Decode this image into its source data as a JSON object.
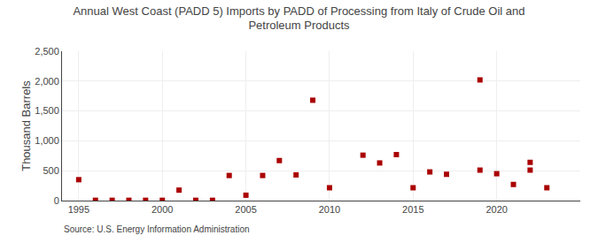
{
  "chart_data": {
    "type": "scatter",
    "title": "Annual West Coast (PADD 5) Imports by PADD of Processing from Italy of Crude Oil and\nPetroleum Products",
    "ylabel": "Thousand Barrels",
    "annotations": [
      "Source: U.S. Energy Information Administration"
    ],
    "x": [
      1995,
      1996,
      1997,
      1998,
      1999,
      2000,
      2001,
      2002,
      2003,
      2004,
      2005,
      2006,
      2007,
      2008,
      2009,
      2010,
      2012,
      2013,
      2014,
      2015,
      2016,
      2017,
      2019,
      2019,
      2020,
      2021,
      2022,
      2022,
      2023
    ],
    "values": [
      350,
      5,
      5,
      5,
      5,
      5,
      175,
      5,
      5,
      420,
      90,
      420,
      670,
      430,
      1680,
      215,
      760,
      630,
      770,
      215,
      480,
      440,
      510,
      2020,
      450,
      270,
      510,
      640,
      215
    ],
    "color": "#aa0000",
    "marker": "square",
    "xlim": [
      1994,
      2025
    ],
    "xticks": [
      1995,
      2000,
      2005,
      2010,
      2015,
      2020
    ],
    "ylim": [
      0,
      2500
    ],
    "yticks": [
      0,
      500,
      {
        "value": 1000,
        "label": "1,000"
      },
      {
        "value": 1500,
        "label": "1,500"
      },
      {
        "value": 2000,
        "label": "2,000"
      },
      {
        "value": 2500,
        "label": "2,500"
      }
    ],
    "grid": true
  }
}
